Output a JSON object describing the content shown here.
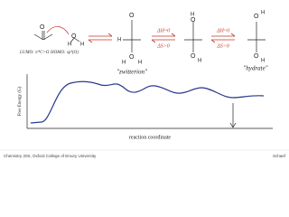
{
  "molecules": [
    {
      "labels": [
        "O",
        "H",
        "H",
        "O"
      ]
    },
    {
      "labels": [
        "O",
        "H",
        "O",
        "H",
        "H"
      ]
    },
    {
      "labels": [
        "H",
        "O",
        "O",
        "H"
      ]
    },
    {
      "labels": [
        "O",
        "H",
        "H",
        "O"
      ]
    }
  ],
  "orbital_notes": [
    "LUMO: π*C=O",
    "HOMO: sp³(O)"
  ],
  "conditions": [
    [
      "ΔH~0",
      "ΔS>0"
    ],
    [
      "ΔH~0",
      "ΔS>0"
    ]
  ],
  "species_names": [
    "\"zwitterion\"",
    "\"hydrate\""
  ],
  "axes": {
    "y_label": "Free Energy (G)",
    "x_label": "reaction coordinate"
  },
  "footer": {
    "course": "Chemistry 20S, Oxford College of Emory University",
    "author": "Schaef"
  }
}
